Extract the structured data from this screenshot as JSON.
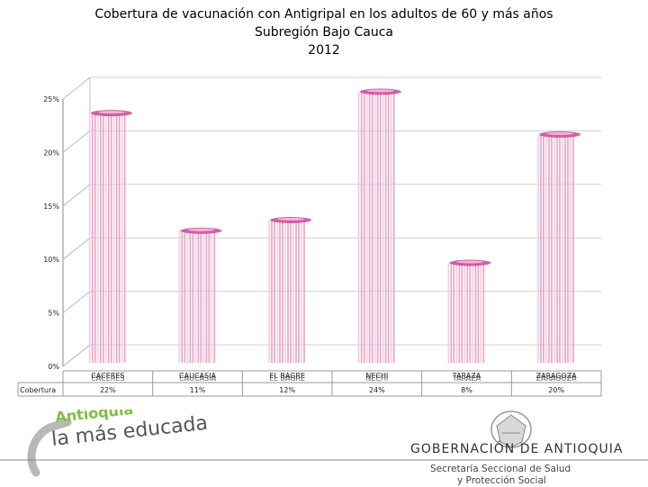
{
  "title": {
    "line1": "Cobertura de vacunación con Antigripal en los adultos de 60 y más años",
    "line2": "Subregión Bajo Cauca",
    "line3": "2012"
  },
  "chart_data": {
    "type": "bar",
    "categories": [
      "CACERES",
      "CAUCASIA",
      "EL BAGRE",
      "NECHI",
      "TARAZA",
      "ZARAGOZA"
    ],
    "series": [
      {
        "name": "Cobertura",
        "values": [
          22,
          11,
          12,
          24,
          8,
          20
        ],
        "value_labels": [
          "22%",
          "11%",
          "12%",
          "24%",
          "8%",
          "20%"
        ]
      }
    ],
    "yticks": [
      "0%",
      "5%",
      "10%",
      "15%",
      "20%",
      "25%"
    ],
    "ylim": [
      0,
      25
    ],
    "grid": true,
    "data_table": true,
    "bar_color": "#e9a3c4",
    "bar_cap_color": "#c9489a"
  },
  "footer": {
    "logo_text": "la más educada",
    "logo_top_text": "Antioquia",
    "gov_label": "GOBERNACIÓN DE ANTIOQUIA",
    "secretaria_line1": "Secretaría Seccional de Salud",
    "secretaria_line2": "y Protección Social"
  }
}
